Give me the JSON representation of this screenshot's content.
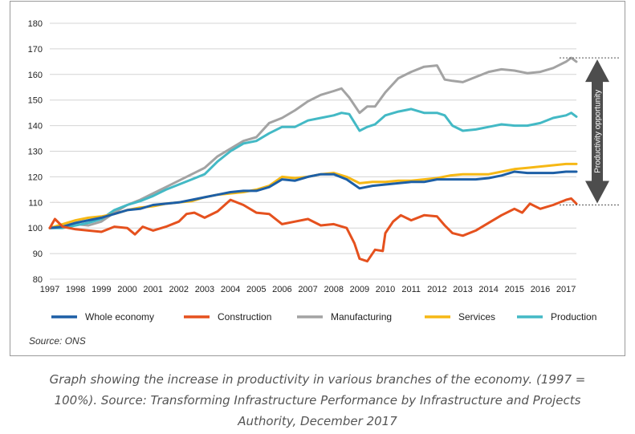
{
  "chart_data": {
    "type": "line",
    "title": "",
    "xlabel": "",
    "ylabel": "",
    "ylim": [
      80,
      180
    ],
    "yticks": [
      80,
      90,
      100,
      110,
      120,
      130,
      140,
      150,
      160,
      170,
      180
    ],
    "xlim": [
      1997,
      2017.4
    ],
    "xticks": [
      "1997",
      "1998",
      "1999",
      "2000",
      "2001",
      "2002",
      "2003",
      "2004",
      "2005",
      "2006",
      "2007",
      "2008",
      "2009",
      "2010",
      "2011",
      "2012",
      "2013",
      "2014",
      "2015",
      "2016",
      "2017"
    ],
    "grid": "horizontal",
    "legend_position": "bottom",
    "annotation": "Productivity opportunity",
    "annotation_range": [
      109,
      166.5
    ],
    "source": "Source: ONS",
    "series": [
      {
        "name": "Whole economy",
        "color": "#1d5fa6",
        "x": [
          1997,
          1997.5,
          1998,
          1998.5,
          1999,
          1999.5,
          2000,
          2000.5,
          2001,
          2001.5,
          2002,
          2002.5,
          2003,
          2003.5,
          2004,
          2004.5,
          2005,
          2005.5,
          2006,
          2006.5,
          2007,
          2007.5,
          2008,
          2008.5,
          2009,
          2009.5,
          2010,
          2010.5,
          2011,
          2011.5,
          2012,
          2012.5,
          2013,
          2013.5,
          2014,
          2014.5,
          2015,
          2015.5,
          2016,
          2016.5,
          2017,
          2017.4
        ],
        "values": [
          100,
          100.5,
          102,
          103,
          104,
          105.5,
          107,
          107.5,
          109,
          109.5,
          110,
          111,
          112,
          113,
          114,
          114.5,
          114.5,
          116,
          119,
          118.5,
          120,
          121,
          121,
          119,
          115.5,
          116.5,
          117,
          117.5,
          118,
          118,
          119,
          119,
          119,
          119,
          119.5,
          120.5,
          122,
          121.5,
          121.5,
          121.5,
          122,
          122
        ]
      },
      {
        "name": "Construction",
        "color": "#e5511e",
        "x": [
          1997,
          1997.2,
          1997.5,
          1998,
          1998.5,
          1999,
          1999.5,
          2000,
          2000.3,
          2000.6,
          2001,
          2001.5,
          2002,
          2002.3,
          2002.6,
          2003,
          2003.5,
          2004,
          2004.5,
          2005,
          2005.5,
          2006,
          2006.5,
          2007,
          2007.5,
          2008,
          2008.5,
          2008.8,
          2009,
          2009.3,
          2009.6,
          2009.9,
          2010,
          2010.3,
          2010.6,
          2011,
          2011.5,
          2012,
          2012.3,
          2012.6,
          2013,
          2013.5,
          2014,
          2014.5,
          2015,
          2015.3,
          2015.6,
          2016,
          2016.5,
          2017,
          2017.2,
          2017.4
        ],
        "values": [
          100,
          103.5,
          100.5,
          99.5,
          99,
          98.5,
          100.5,
          100,
          97.5,
          100.5,
          99,
          100.5,
          102.5,
          105.5,
          106,
          104,
          106.5,
          111,
          109,
          106,
          105.5,
          101.5,
          102.5,
          103.5,
          101,
          101.5,
          100,
          94,
          88,
          87,
          91.5,
          91,
          98,
          102.5,
          105,
          103,
          105,
          104.5,
          101,
          98,
          97,
          99,
          102,
          105,
          107.5,
          106,
          109.5,
          107.5,
          109,
          111,
          111.5,
          109.5
        ]
      },
      {
        "name": "Manufacturing",
        "color": "#a3a3a3",
        "x": [
          1997,
          1997.5,
          1998,
          1998.5,
          1999,
          1999.5,
          2000,
          2000.5,
          2001,
          2001.5,
          2002,
          2002.5,
          2003,
          2003.5,
          2004,
          2004.5,
          2005,
          2005.5,
          2006,
          2006.5,
          2007,
          2007.5,
          2008,
          2008.3,
          2008.6,
          2009,
          2009.3,
          2009.6,
          2010,
          2010.5,
          2011,
          2011.5,
          2012,
          2012.3,
          2012.6,
          2013,
          2013.5,
          2014,
          2014.5,
          2015,
          2015.5,
          2016,
          2016.5,
          2017,
          2017.2,
          2017.4
        ],
        "values": [
          100,
          100.5,
          101.5,
          101,
          102.5,
          106,
          109,
          111,
          113.5,
          116,
          118.5,
          121,
          123.5,
          128,
          131,
          134,
          135.5,
          141,
          143,
          146,
          149.5,
          152,
          153.5,
          154.5,
          151,
          145,
          147.5,
          147.5,
          153,
          158.5,
          161,
          163,
          163.5,
          158,
          157.5,
          157,
          159,
          161,
          162,
          161.5,
          160.5,
          161,
          162.5,
          165,
          166.5,
          165
        ]
      },
      {
        "name": "Services",
        "color": "#f6b815",
        "x": [
          1997,
          1997.5,
          1998,
          1998.5,
          1999,
          1999.5,
          2000,
          2000.5,
          2001,
          2001.5,
          2002,
          2002.5,
          2003,
          2003.5,
          2004,
          2004.5,
          2005,
          2005.5,
          2006,
          2006.5,
          2007,
          2007.5,
          2008,
          2008.5,
          2009,
          2009.5,
          2010,
          2010.5,
          2011,
          2011.5,
          2012,
          2012.5,
          2013,
          2013.5,
          2014,
          2014.5,
          2015,
          2015.5,
          2016,
          2016.5,
          2017,
          2017.4
        ],
        "values": [
          100,
          101.5,
          103,
          104,
          104.5,
          105.5,
          107,
          108,
          108.5,
          109.5,
          110,
          110.5,
          112,
          113,
          113.5,
          114,
          115,
          116.5,
          120,
          119.5,
          120,
          121,
          121.5,
          120,
          117.5,
          118,
          118,
          118.5,
          118.5,
          119,
          119.5,
          120.5,
          121,
          121,
          121,
          122,
          123,
          123.5,
          124,
          124.5,
          125,
          125
        ]
      },
      {
        "name": "Production",
        "color": "#43b9c5",
        "x": [
          1997,
          1997.5,
          1998,
          1998.5,
          1999,
          1999.5,
          2000,
          2000.5,
          2001,
          2001.5,
          2002,
          2002.5,
          2003,
          2003.5,
          2004,
          2004.5,
          2005,
          2005.5,
          2006,
          2006.5,
          2007,
          2007.5,
          2008,
          2008.3,
          2008.6,
          2009,
          2009.3,
          2009.6,
          2010,
          2010.5,
          2011,
          2011.5,
          2012,
          2012.3,
          2012.6,
          2013,
          2013.5,
          2014,
          2014.5,
          2015,
          2015.5,
          2016,
          2016.5,
          2017,
          2017.2,
          2017.4
        ],
        "values": [
          100,
          100,
          101,
          102,
          103.5,
          107,
          109,
          110.5,
          112.5,
          115,
          117,
          119,
          121,
          126,
          130,
          133,
          134,
          137,
          139.5,
          139.5,
          142,
          143,
          144,
          145,
          144.5,
          138,
          139.5,
          140.5,
          144,
          145.5,
          146.5,
          145,
          145,
          144,
          140,
          138,
          138.5,
          139.5,
          140.5,
          140,
          140,
          141,
          143,
          144,
          145,
          143.5
        ]
      }
    ]
  },
  "caption": {
    "line1": "Graph showing the increase in productivity in various branches of the economy. (1997 =",
    "line2": "100%). Source: Transforming Infrastructure Performance by Infrastructure and Projects",
    "line3": "Authority, December 2017"
  }
}
